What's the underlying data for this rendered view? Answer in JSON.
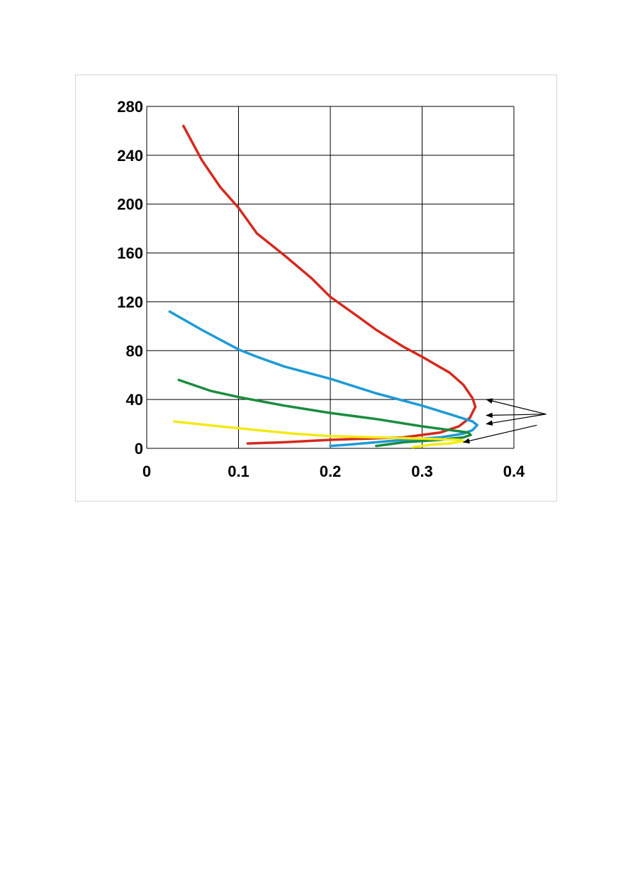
{
  "chart_data": {
    "type": "line",
    "title": "",
    "xlabel": "",
    "ylabel": "",
    "xlim": [
      0,
      0.4
    ],
    "ylim": [
      0,
      280
    ],
    "x_ticks": [
      0,
      0.1,
      0.2,
      0.3,
      0.4
    ],
    "x_tick_labels": [
      "0",
      "0.1",
      "0.2",
      "0.3",
      "0.4"
    ],
    "y_ticks": [
      0,
      40,
      80,
      120,
      160,
      200,
      240,
      280
    ],
    "y_tick_labels": [
      "0",
      "40",
      "80",
      "120",
      "160",
      "200",
      "240",
      "280"
    ],
    "grid": true,
    "legend": "none",
    "series": [
      {
        "color": "#d42a1e",
        "points": [
          [
            0.04,
            264
          ],
          [
            0.06,
            236
          ],
          [
            0.08,
            214
          ],
          [
            0.1,
            197
          ],
          [
            0.12,
            176
          ],
          [
            0.15,
            158
          ],
          [
            0.18,
            139
          ],
          [
            0.2,
            124
          ],
          [
            0.23,
            108
          ],
          [
            0.25,
            97
          ],
          [
            0.28,
            83
          ],
          [
            0.3,
            75
          ],
          [
            0.33,
            62
          ],
          [
            0.345,
            52
          ],
          [
            0.355,
            41
          ],
          [
            0.358,
            34
          ],
          [
            0.352,
            25
          ],
          [
            0.34,
            18
          ],
          [
            0.32,
            13
          ],
          [
            0.28,
            9
          ],
          [
            0.2,
            7
          ],
          [
            0.15,
            5
          ],
          [
            0.11,
            4
          ]
        ]
      },
      {
        "color": "#1e9ad6",
        "points": [
          [
            0.025,
            112
          ],
          [
            0.06,
            97
          ],
          [
            0.1,
            81
          ],
          [
            0.12,
            75
          ],
          [
            0.15,
            67
          ],
          [
            0.2,
            57
          ],
          [
            0.25,
            45
          ],
          [
            0.3,
            35
          ],
          [
            0.33,
            28
          ],
          [
            0.355,
            22
          ],
          [
            0.36,
            19
          ],
          [
            0.355,
            15
          ],
          [
            0.345,
            12
          ],
          [
            0.32,
            9
          ],
          [
            0.28,
            7
          ],
          [
            0.25,
            5
          ],
          [
            0.22,
            3
          ],
          [
            0.2,
            2
          ]
        ]
      },
      {
        "color": "#1a8c3e",
        "points": [
          [
            0.035,
            56
          ],
          [
            0.07,
            47
          ],
          [
            0.1,
            42
          ],
          [
            0.15,
            35
          ],
          [
            0.2,
            29
          ],
          [
            0.25,
            24
          ],
          [
            0.3,
            18
          ],
          [
            0.33,
            15
          ],
          [
            0.35,
            13
          ],
          [
            0.353,
            11
          ],
          [
            0.345,
            9
          ],
          [
            0.32,
            7
          ],
          [
            0.28,
            5
          ],
          [
            0.25,
            2
          ]
        ]
      },
      {
        "color": "#f2ea14",
        "points": [
          [
            0.03,
            22
          ],
          [
            0.08,
            18
          ],
          [
            0.12,
            15
          ],
          [
            0.16,
            12
          ],
          [
            0.2,
            10
          ],
          [
            0.25,
            9
          ],
          [
            0.3,
            8
          ],
          [
            0.34,
            7
          ],
          [
            0.345,
            6
          ],
          [
            0.33,
            4
          ],
          [
            0.31,
            3
          ],
          [
            0.29,
            1
          ]
        ]
      }
    ],
    "annotations": {
      "arrow_color": "#000000",
      "arrows": [
        {
          "from": [
            0.435,
            28
          ],
          "to": [
            0.37,
            40
          ]
        },
        {
          "from": [
            0.435,
            28
          ],
          "to": [
            0.37,
            27
          ]
        },
        {
          "from": [
            0.435,
            28
          ],
          "to": [
            0.37,
            20
          ]
        },
        {
          "from": [
            0.425,
            19
          ],
          "to": [
            0.345,
            5
          ]
        }
      ]
    }
  }
}
